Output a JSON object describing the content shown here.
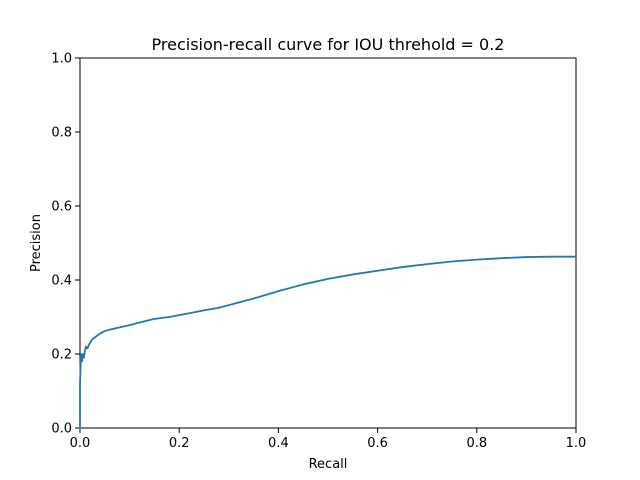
{
  "chart_data": {
    "type": "line",
    "title": "Precision-recall curve for IOU threhold = 0.2",
    "xlabel": "Recall",
    "ylabel": "Precision",
    "xlim": [
      0.0,
      1.0
    ],
    "ylim": [
      0.0,
      1.0
    ],
    "xticks": [
      0.0,
      0.2,
      0.4,
      0.6,
      0.8,
      1.0
    ],
    "yticks": [
      0.0,
      0.2,
      0.4,
      0.6,
      0.8,
      1.0
    ],
    "xtick_labels": [
      "0.0",
      "0.2",
      "0.4",
      "0.6",
      "0.8",
      "1.0"
    ],
    "ytick_labels": [
      "0.0",
      "0.2",
      "0.4",
      "0.6",
      "0.8",
      "1.0"
    ],
    "grid": false,
    "legend": "none",
    "series": [
      {
        "color": "#1f77b4",
        "x": [
          0.0,
          0.0,
          0.002,
          0.004,
          0.006,
          0.008,
          0.01,
          0.012,
          0.015,
          0.018,
          0.02,
          0.025,
          0.03,
          0.035,
          0.04,
          0.05,
          0.06,
          0.08,
          0.1,
          0.12,
          0.15,
          0.18,
          0.2,
          0.22,
          0.25,
          0.28,
          0.3,
          0.35,
          0.4,
          0.45,
          0.5,
          0.55,
          0.6,
          0.65,
          0.7,
          0.75,
          0.8,
          0.85,
          0.9,
          0.95,
          1.0
        ],
        "y": [
          0.0,
          0.12,
          0.2,
          0.18,
          0.2,
          0.19,
          0.21,
          0.22,
          0.215,
          0.225,
          0.23,
          0.24,
          0.245,
          0.25,
          0.255,
          0.262,
          0.266,
          0.272,
          0.278,
          0.285,
          0.295,
          0.3,
          0.305,
          0.31,
          0.318,
          0.325,
          0.332,
          0.35,
          0.37,
          0.388,
          0.403,
          0.415,
          0.425,
          0.435,
          0.443,
          0.45,
          0.455,
          0.459,
          0.462,
          0.463,
          0.463
        ]
      }
    ]
  },
  "colors": {
    "line": "#1f77b4",
    "axes": "#000000",
    "background": "#ffffff"
  }
}
